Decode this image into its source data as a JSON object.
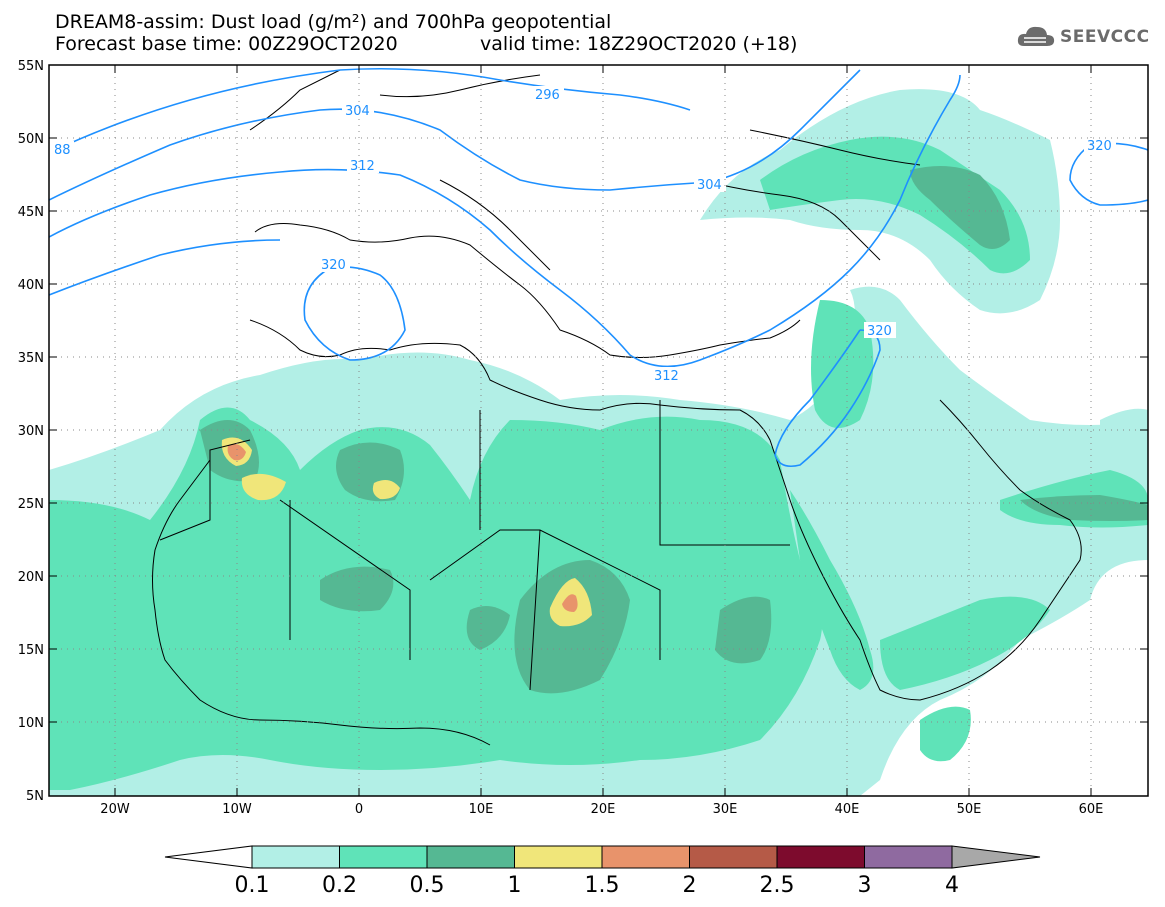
{
  "title": {
    "line1": "DREAM8-assim: Dust load (g/m²) and 700hPa geopotential",
    "base_time": "Forecast base time: 00Z29OCT2020",
    "valid_time": "valid time: 18Z29OCT2020 (+18)"
  },
  "logo": {
    "text": "SEEVCCC",
    "icon": "cloud-icon"
  },
  "map": {
    "projection": "lat-lon",
    "lon_range": [
      -25,
      65
    ],
    "lat_range": [
      5,
      55
    ],
    "lat_ticks": [
      "55N",
      "50N",
      "45N",
      "40N",
      "35N",
      "30N",
      "25N",
      "20N",
      "15N",
      "10N",
      "5N"
    ],
    "lon_ticks": [
      "20W",
      "10W",
      "0",
      "10E",
      "20E",
      "30E",
      "40E",
      "50E",
      "60E"
    ],
    "grid": "dotted",
    "geopotential_labels": [
      "296",
      "304",
      "312",
      "320",
      "320",
      "312",
      "304",
      "320",
      "88"
    ]
  },
  "colorbar": {
    "levels": [
      "0.1",
      "0.2",
      "0.5",
      "1",
      "1.5",
      "2",
      "2.5",
      "3",
      "4"
    ],
    "colors": [
      "#b2efe6",
      "#5fe3b8",
      "#55b893",
      "#f0e67a",
      "#e8936b",
      "#b55a47",
      "#7d0b2d",
      "#8f6aa0",
      "#a8a8a8"
    ]
  },
  "colors": {
    "contour": "#1e90ff",
    "dust_low": "#b2efe6",
    "dust_mid": "#5fe3b8",
    "dust_high": "#55b893",
    "dust_1": "#f0e67a",
    "dust_15": "#e8936b"
  }
}
